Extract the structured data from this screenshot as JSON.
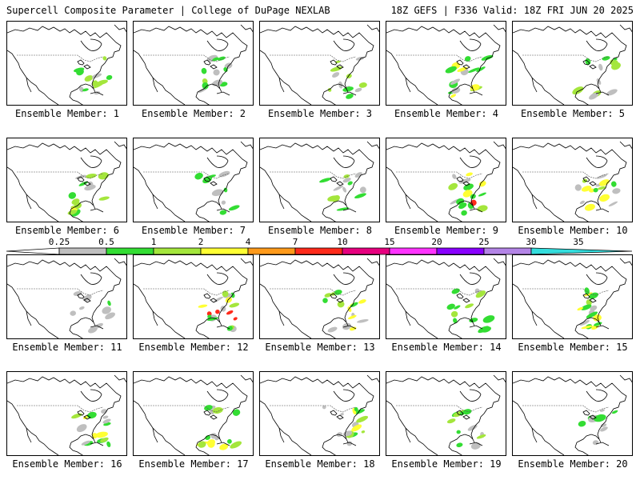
{
  "header": {
    "left_title": "Supercell Composite Parameter | College of DuPage NEXLAB",
    "right_title": "18Z GEFS | F336 Valid: 18Z FRI JUN 20 2025"
  },
  "colorbar": {
    "labels": [
      "0.25",
      "0.5",
      "1",
      "2",
      "4",
      "7",
      "10",
      "15",
      "20",
      "25",
      "30",
      "35"
    ],
    "colors": [
      "#ffffff",
      "#bfbfbf",
      "#33dd33",
      "#a4e63c",
      "#ffff33",
      "#ff9a1a",
      "#ff2a1a",
      "#e6007e",
      "#ff33ff",
      "#8800ff",
      "#b384e6",
      "#33dddd"
    ]
  },
  "map_colors": {
    "land": "#ffffff",
    "coast": "#000000",
    "field_low": "#bfbfbf",
    "field_mid": "#33dd33",
    "field_high": "#a4e63c",
    "field_peak": "#ffff33",
    "field_max": "#ff2a1a"
  },
  "members": [
    {
      "caption": "Ensemble Member: 1",
      "intensity": 2
    },
    {
      "caption": "Ensemble Member: 2",
      "intensity": 2
    },
    {
      "caption": "Ensemble Member: 3",
      "intensity": 2
    },
    {
      "caption": "Ensemble Member: 4",
      "intensity": 3
    },
    {
      "caption": "Ensemble Member: 5",
      "intensity": 2
    },
    {
      "caption": "Ensemble Member: 6",
      "intensity": 3
    },
    {
      "caption": "Ensemble Member: 7",
      "intensity": 1
    },
    {
      "caption": "Ensemble Member: 8",
      "intensity": 2
    },
    {
      "caption": "Ensemble Member: 9",
      "intensity": 4
    },
    {
      "caption": "Ensemble Member: 10",
      "intensity": 3
    },
    {
      "caption": "Ensemble Member: 11",
      "intensity": 1
    },
    {
      "caption": "Ensemble Member: 12",
      "intensity": 4
    },
    {
      "caption": "Ensemble Member: 13",
      "intensity": 3
    },
    {
      "caption": "Ensemble Member: 14",
      "intensity": 2
    },
    {
      "caption": "Ensemble Member: 15",
      "intensity": 3
    },
    {
      "caption": "Ensemble Member: 16",
      "intensity": 3
    },
    {
      "caption": "Ensemble Member: 17",
      "intensity": 3
    },
    {
      "caption": "Ensemble Member: 18",
      "intensity": 3
    },
    {
      "caption": "Ensemble Member: 19",
      "intensity": 2
    },
    {
      "caption": "Ensemble Member: 20",
      "intensity": 1
    }
  ]
}
